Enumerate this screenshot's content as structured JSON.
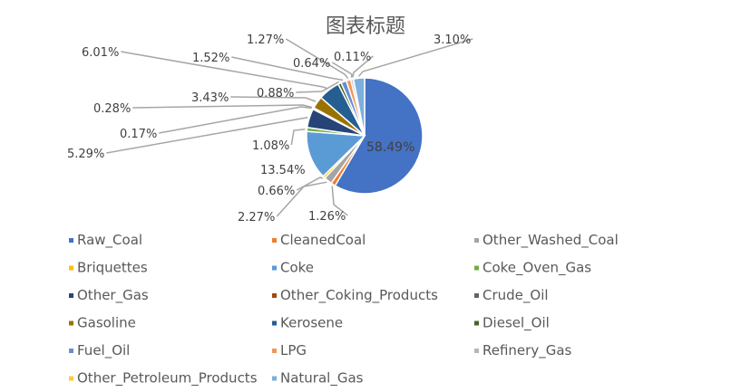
{
  "chart_data": {
    "type": "pie",
    "title": "图表标题",
    "categories": [
      "Raw_Coal",
      "CleanedCoal",
      "Other_Washed_Coal",
      "Briquettes",
      "Coke",
      "Coke_Oven_Gas",
      "Other_Gas",
      "Other_Coking_Products",
      "Crude_Oil",
      "Gasoline",
      "Kerosene",
      "Diesel_Oil",
      "Fuel_Oil",
      "LPG",
      "Refinery_Gas",
      "Other_Petroleum_Products",
      "Natural_Gas"
    ],
    "values": [
      58.49,
      1.26,
      2.27,
      0.66,
      13.54,
      1.08,
      5.29,
      0.17,
      0.28,
      3.43,
      6.01,
      0.88,
      1.52,
      1.27,
      0.64,
      0.11,
      3.1
    ],
    "labels": [
      "58.49%",
      "1.26%",
      "2.27%",
      "0.66%",
      "13.54%",
      "1.08%",
      "5.29%",
      "0.17%",
      "0.28%",
      "3.43%",
      "6.01%",
      "0.88%",
      "1.52%",
      "1.27%",
      "0.64%",
      "0.11%",
      "3.10%"
    ],
    "colors": [
      "#4472C4",
      "#ED7D31",
      "#A5A5A5",
      "#FFC000",
      "#5B9BD5",
      "#70AD47",
      "#264478",
      "#9E480E",
      "#636363",
      "#997300",
      "#255E91",
      "#43682B",
      "#698ED0",
      "#F1975A",
      "#B7B7B7",
      "#FFCD33",
      "#7CAFDD"
    ],
    "legend_position": "bottom"
  }
}
